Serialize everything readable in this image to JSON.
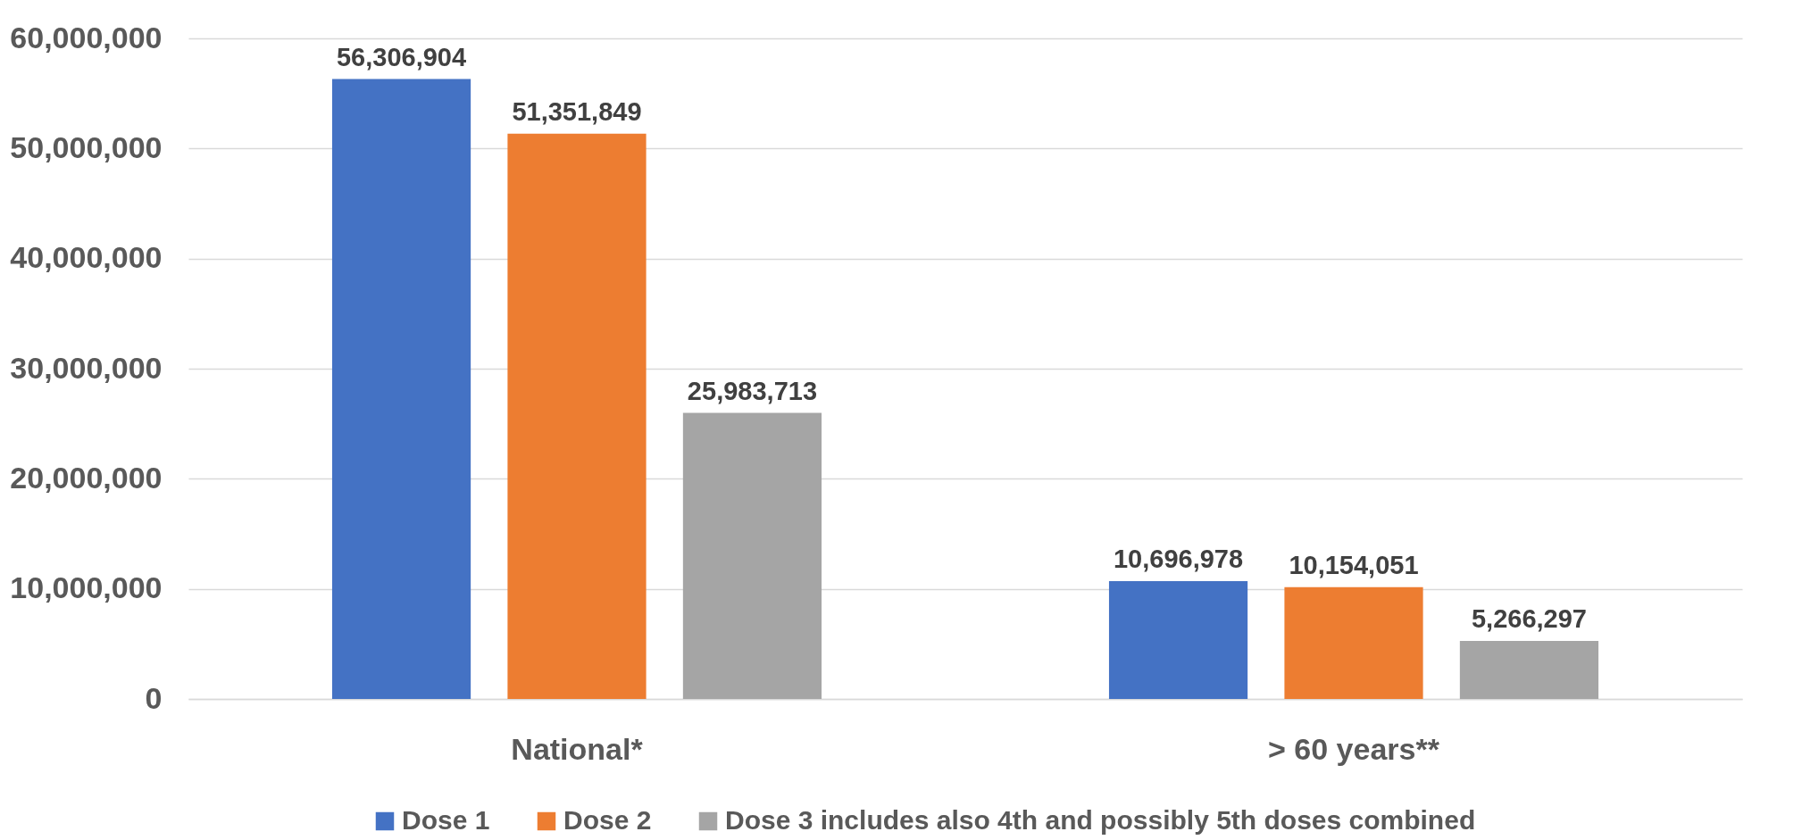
{
  "chart_data": {
    "type": "bar",
    "categories": [
      "National*",
      "> 60 years**"
    ],
    "series": [
      {
        "name": "Dose 1",
        "color": "#4472c4",
        "values": [
          56306904,
          10696978
        ],
        "value_labels": [
          "56,306,904",
          "10,696,978"
        ]
      },
      {
        "name": "Dose 2",
        "color": "#ed7d31",
        "values": [
          51351849,
          10154051
        ],
        "value_labels": [
          "51,351,849",
          "10,154,051"
        ]
      },
      {
        "name": "Dose 3 includes also 4th and possibly 5th doses combined",
        "color": "#a5a5a5",
        "values": [
          25983713,
          5266297
        ],
        "value_labels": [
          "25,983,713",
          "5,266,297"
        ]
      }
    ],
    "ylim": [
      0,
      60000000
    ],
    "yticks": [
      {
        "value": 0,
        "label": "0"
      },
      {
        "value": 10000000,
        "label": "10,000,000"
      },
      {
        "value": 20000000,
        "label": "20,000,000"
      },
      {
        "value": 30000000,
        "label": "30,000,000"
      },
      {
        "value": 40000000,
        "label": "40,000,000"
      },
      {
        "value": 50000000,
        "label": "50,000,000"
      },
      {
        "value": 60000000,
        "label": "60,000,000"
      }
    ],
    "grid": "y",
    "legend": "bottom"
  }
}
